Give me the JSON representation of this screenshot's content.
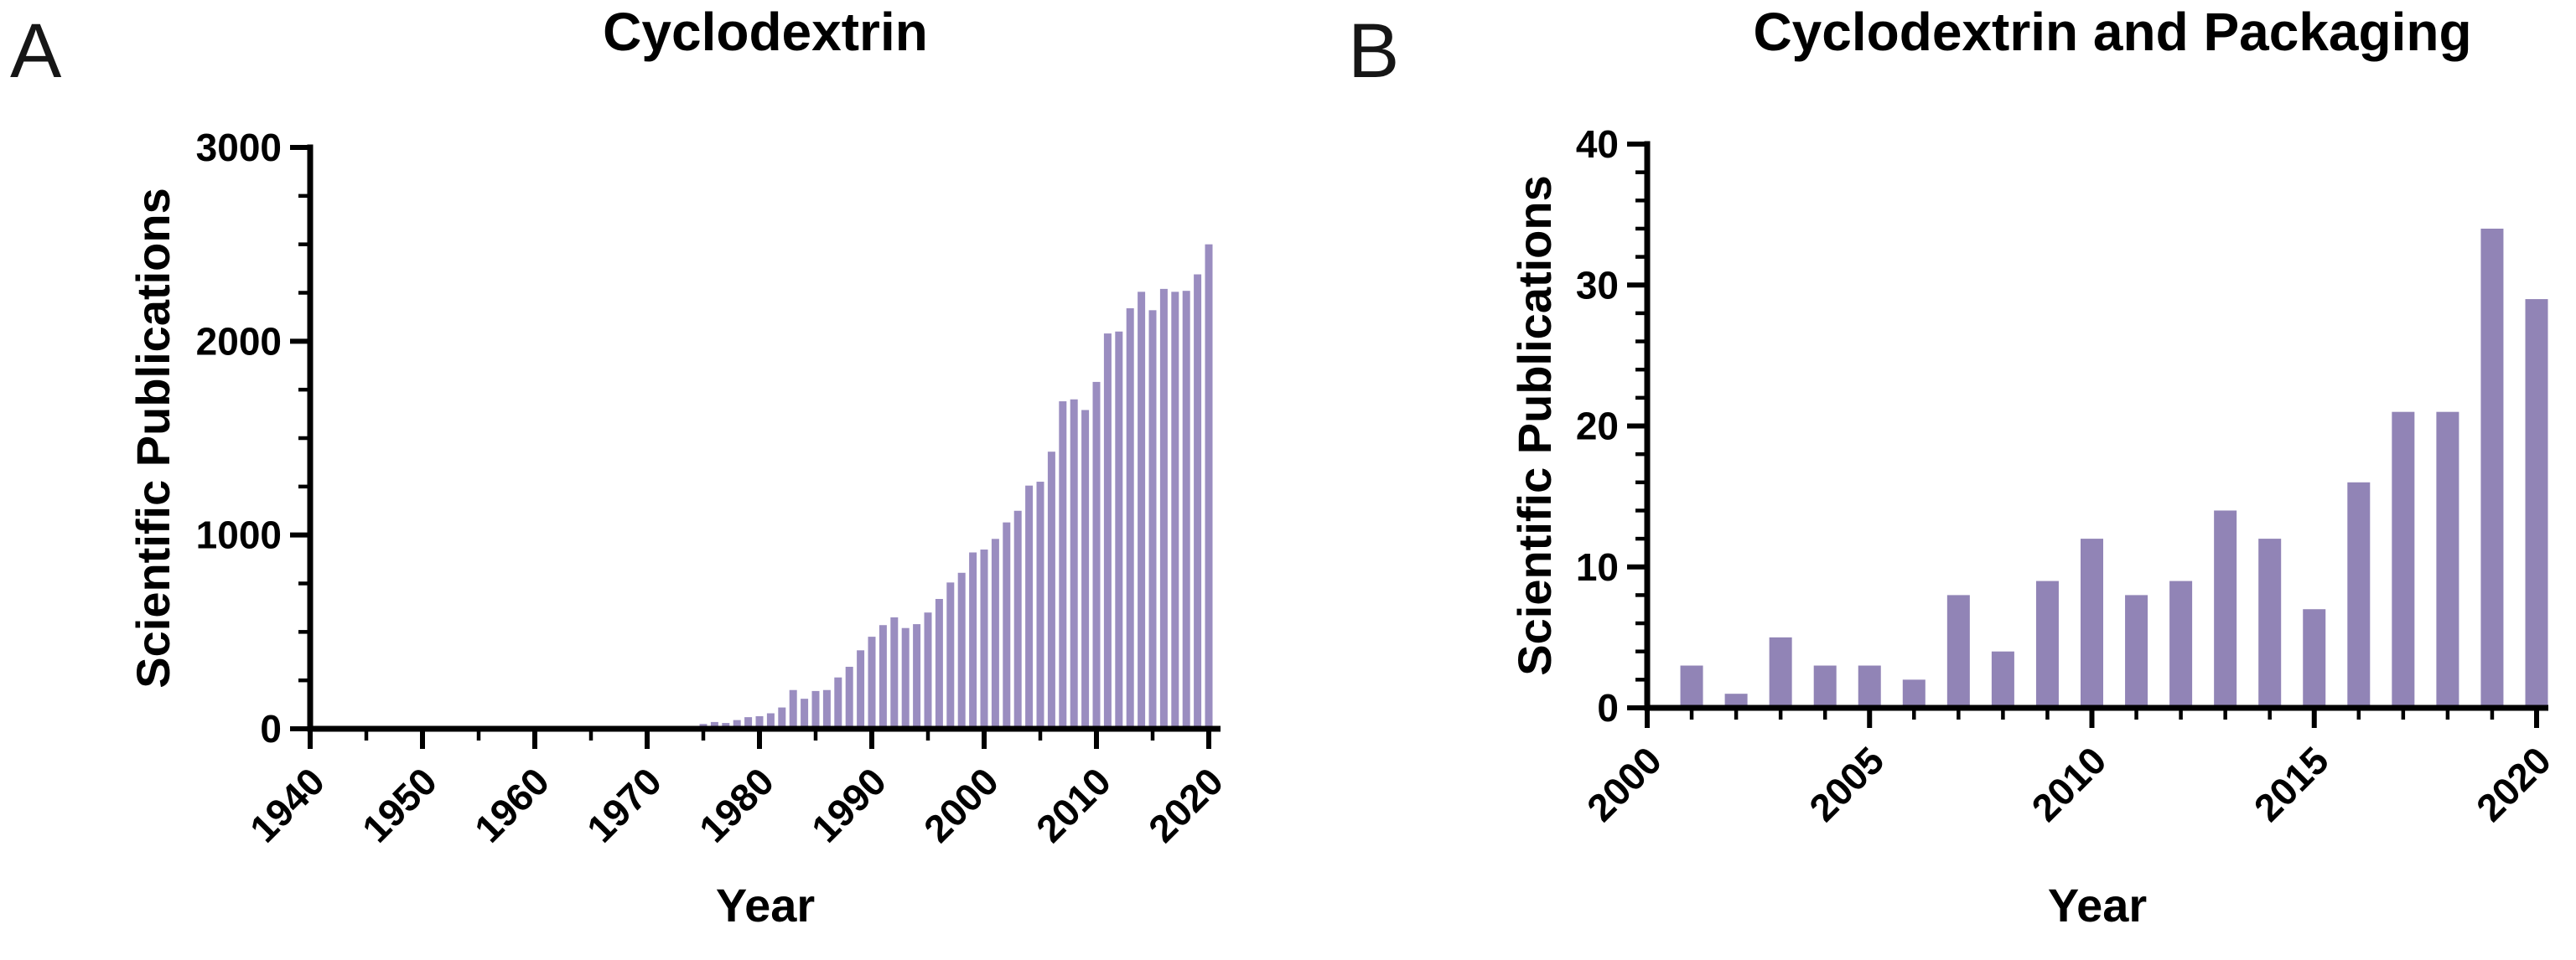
{
  "figure": {
    "background": "#ffffff",
    "axis_color": "#000000"
  },
  "chart_data": [
    {
      "type": "bar",
      "panel_label": "A",
      "title": "Cyclodextrin",
      "xlabel": "Year",
      "ylabel": "Scientific Publications",
      "bar_color": "#9a8dc0",
      "ylim": [
        0,
        3000
      ],
      "yticks": [
        0,
        1000,
        2000,
        3000
      ],
      "y_minor_step": 250,
      "xticks": [
        1940,
        1950,
        1960,
        1970,
        1980,
        1990,
        2000,
        2010,
        2020
      ],
      "x_minor_step": 5,
      "x_axis_range": [
        1940,
        2021.2
      ],
      "grid": "off",
      "legend": "none",
      "years": [
        1973,
        1974,
        1975,
        1976,
        1977,
        1978,
        1979,
        1980,
        1981,
        1982,
        1983,
        1984,
        1985,
        1986,
        1987,
        1988,
        1989,
        1990,
        1991,
        1992,
        1993,
        1994,
        1995,
        1996,
        1997,
        1998,
        1999,
        2000,
        2001,
        2002,
        2003,
        2004,
        2005,
        2006,
        2007,
        2008,
        2009,
        2010,
        2011,
        2012,
        2013,
        2014,
        2015,
        2016,
        2017,
        2018,
        2019,
        2020
      ],
      "values": [
        8,
        15,
        25,
        35,
        30,
        45,
        60,
        65,
        80,
        110,
        200,
        155,
        195,
        200,
        265,
        320,
        405,
        475,
        535,
        575,
        520,
        540,
        600,
        670,
        755,
        805,
        910,
        925,
        980,
        1065,
        1125,
        1255,
        1275,
        1430,
        1690,
        1700,
        1645,
        1790,
        2040,
        2050,
        2170,
        2255,
        2160,
        2270,
        2255,
        2260,
        2345,
        2500
      ]
    },
    {
      "type": "bar",
      "panel_label": "B",
      "title": "Cyclodextrin and Packaging",
      "xlabel": "Year",
      "ylabel": "Scientific Publications",
      "bar_color": "#9184b6",
      "ylim": [
        0,
        40
      ],
      "yticks": [
        0,
        10,
        20,
        30,
        40
      ],
      "y_minor_step": 2,
      "xticks": [
        2000,
        2005,
        2010,
        2015,
        2020
      ],
      "x_minor_step": 1,
      "x_axis_range": [
        2000,
        2020.3
      ],
      "grid": "off",
      "legend": "none",
      "years": [
        2001,
        2002,
        2003,
        2004,
        2005,
        2006,
        2007,
        2008,
        2009,
        2010,
        2011,
        2012,
        2013,
        2014,
        2015,
        2016,
        2017,
        2018,
        2019,
        2020
      ],
      "values": [
        3,
        1,
        5,
        3,
        3,
        2,
        8,
        4,
        9,
        12,
        8,
        9,
        14,
        12,
        7,
        16,
        21,
        21,
        34,
        29
      ]
    }
  ]
}
